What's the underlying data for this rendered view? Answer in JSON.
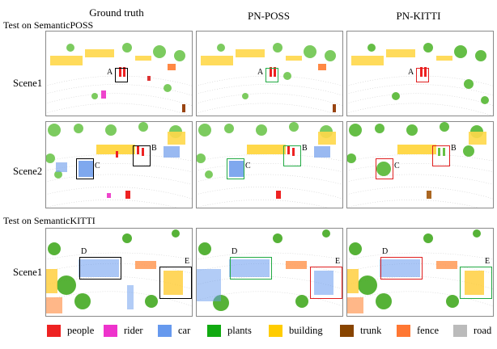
{
  "columns": [
    "Ground truth",
    "PN-POSS",
    "PN-KITTI"
  ],
  "sections": {
    "poss": "Test on SemanticPOSS",
    "kitti": "Test on SemanticKITTI"
  },
  "rows": {
    "poss_scene1": "Scene1",
    "poss_scene2": "Scene2",
    "kitti_scene1": "Scene1"
  },
  "box_labels": {
    "a": "A",
    "b": "B",
    "c": "C",
    "d": "D",
    "e": "E"
  },
  "box_colors": {
    "ground_truth": "#000000",
    "correct": "#22aa44",
    "wrong": "#e02020"
  },
  "legend": [
    {
      "label": "people",
      "color": "#ee2222"
    },
    {
      "label": "rider",
      "color": "#ee33cc"
    },
    {
      "label": "car",
      "color": "#6699ee"
    },
    {
      "label": "plants",
      "color": "#11aa11"
    },
    {
      "label": "building",
      "color": "#ffcc00"
    },
    {
      "label": "trunk",
      "color": "#884400"
    },
    {
      "label": "fence",
      "color": "#ff7733"
    },
    {
      "label": "road",
      "color": "#bbbbbb"
    }
  ]
}
